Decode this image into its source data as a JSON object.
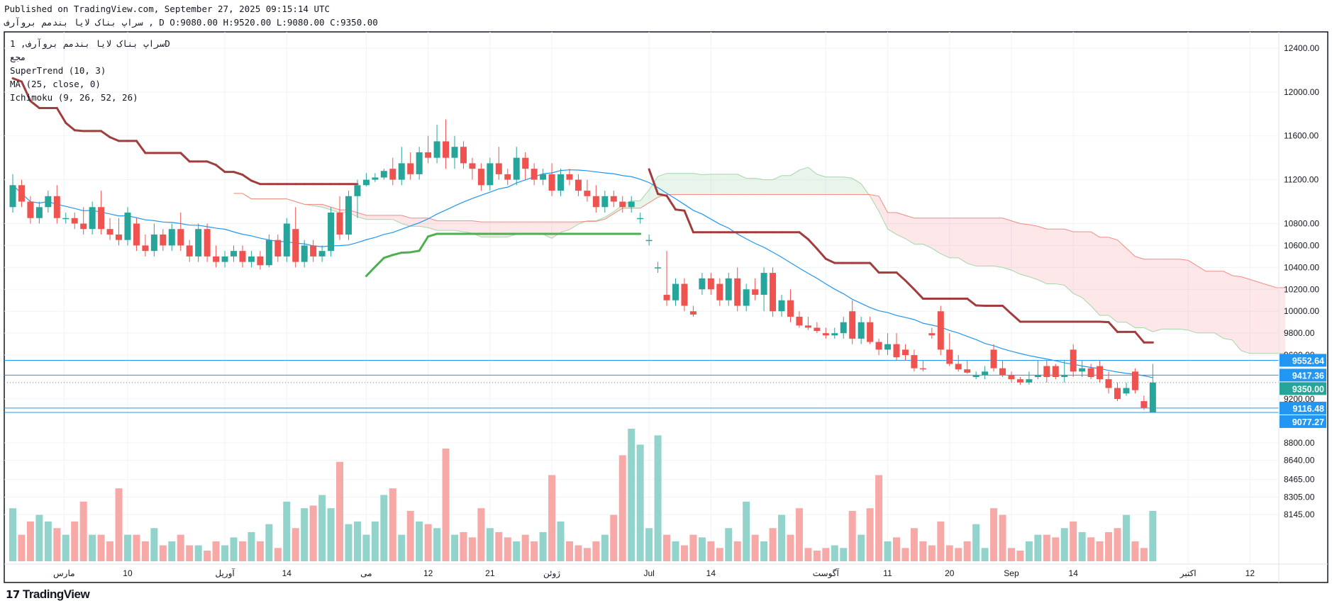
{
  "header": {
    "published": "Published on TradingView.com, September 27, 2025 09:15:14 UTC",
    "ohlc_line": "سراپ بناک لایا بندمم بروآرف , D O:9080.00 H:9520.00 L:9080.00 C:9350.00"
  },
  "legend": {
    "symbol": "سراپ بناک لایا بندمم بروآرف, 1D",
    "exchange": "مجع",
    "supertrend": "SuperTrend (10, 3)",
    "ma": "MA (25, close, 0)",
    "ichimoku": "Ichimoku (9, 26, 52, 26)"
  },
  "branding": {
    "logo_text": "TradingView"
  },
  "colors": {
    "up": "#26a69a",
    "down": "#ef5350",
    "vol_up": "#92d3cc",
    "vol_down": "#f7a9a7",
    "ma": "#2196f3",
    "st_up": "#4caf50",
    "st_down": "#a13d3d",
    "level": "#2196f3",
    "span_a": "#a5d6a7",
    "span_b": "#f28b82"
  },
  "chart_data": {
    "type": "candlestick",
    "title": "سراپ بناک لایا بندمم بروآرف, 1D",
    "timeframe": "1D",
    "ohlc": [
      [
        10950,
        11250,
        10900,
        11150
      ],
      [
        11150,
        11200,
        10950,
        11000
      ],
      [
        11000,
        11050,
        10800,
        10850
      ],
      [
        10850,
        11000,
        10800,
        10950
      ],
      [
        10950,
        11100,
        10900,
        11050
      ],
      [
        11050,
        11150,
        10800,
        10850
      ],
      [
        10850,
        10900,
        10800,
        10850
      ],
      [
        10850,
        10900,
        10750,
        10800
      ],
      [
        10800,
        10950,
        10700,
        10750
      ],
      [
        10750,
        11000,
        10700,
        10950
      ],
      [
        10950,
        11100,
        10700,
        10750
      ],
      [
        10750,
        10850,
        10650,
        10700
      ],
      [
        10700,
        10850,
        10600,
        10650
      ],
      [
        10650,
        10950,
        10600,
        10900
      ],
      [
        10800,
        10850,
        10550,
        10600
      ],
      [
        10600,
        10700,
        10500,
        10550
      ],
      [
        10550,
        10800,
        10500,
        10700
      ],
      [
        10700,
        10750,
        10550,
        10600
      ],
      [
        10600,
        10800,
        10550,
        10750
      ],
      [
        10750,
        10900,
        10550,
        10600
      ],
      [
        10600,
        10650,
        10450,
        10500
      ],
      [
        10500,
        10800,
        10450,
        10750
      ],
      [
        10750,
        10800,
        10450,
        10500
      ],
      [
        10500,
        10600,
        10400,
        10450
      ],
      [
        10450,
        10550,
        10400,
        10500
      ],
      [
        10500,
        10600,
        10450,
        10550
      ],
      [
        10550,
        10600,
        10400,
        10450
      ],
      [
        10450,
        10550,
        10400,
        10500
      ],
      [
        10500,
        10550,
        10380,
        10420
      ],
      [
        10420,
        10700,
        10400,
        10650
      ],
      [
        10650,
        10700,
        10450,
        10500
      ],
      [
        10500,
        10850,
        10450,
        10800
      ],
      [
        10750,
        10950,
        10400,
        10450
      ],
      [
        10450,
        10650,
        10400,
        10600
      ],
      [
        10600,
        10650,
        10450,
        10500
      ],
      [
        10500,
        10600,
        10450,
        10550
      ],
      [
        10550,
        10950,
        10500,
        10900
      ],
      [
        10900,
        11050,
        10650,
        10700
      ],
      [
        10700,
        11100,
        10650,
        11050
      ],
      [
        11050,
        11200,
        10850,
        11150
      ],
      [
        11150,
        11260,
        11140,
        11200
      ],
      [
        11200,
        11260,
        11180,
        11220
      ],
      [
        11220,
        11300,
        11200,
        11280
      ],
      [
        11300,
        11400,
        11150,
        11200
      ],
      [
        11200,
        11500,
        11150,
        11350
      ],
      [
        11350,
        11450,
        11200,
        11250
      ],
      [
        11250,
        11500,
        11200,
        11450
      ],
      [
        11450,
        11600,
        11350,
        11400
      ],
      [
        11400,
        11700,
        11350,
        11550
      ],
      [
        11550,
        11750,
        11300,
        11400
      ],
      [
        11400,
        11600,
        11300,
        11500
      ],
      [
        11500,
        11550,
        11300,
        11350
      ],
      [
        11350,
        11400,
        11200,
        11300
      ],
      [
        11300,
        11350,
        11100,
        11150
      ],
      [
        11150,
        11400,
        11100,
        11350
      ],
      [
        11350,
        11500,
        11200,
        11250
      ],
      [
        11250,
        11300,
        11150,
        11200
      ],
      [
        11200,
        11500,
        11150,
        11400
      ],
      [
        11400,
        11450,
        11200,
        11300
      ],
      [
        11300,
        11350,
        11150,
        11200
      ],
      [
        11200,
        11300,
        11150,
        11250
      ],
      [
        11250,
        11350,
        11050,
        11100
      ],
      [
        11100,
        11300,
        11050,
        11250
      ],
      [
        11250,
        11300,
        11150,
        11200
      ],
      [
        11200,
        11250,
        11050,
        11100
      ],
      [
        11100,
        11200,
        11000,
        11050
      ],
      [
        11050,
        11150,
        10900,
        10950
      ],
      [
        10950,
        11100,
        10900,
        11050
      ],
      [
        11050,
        11100,
        10950,
        11000
      ],
      [
        11000,
        11050,
        10900,
        10950
      ],
      [
        10950,
        11050,
        10900,
        11000
      ],
      [
        10850,
        10900,
        10800,
        10850
      ],
      [
        10650,
        10700,
        10600,
        10650
      ],
      [
        10400,
        10450,
        10350,
        10400
      ],
      [
        10150,
        10550,
        10050,
        10100
      ],
      [
        10100,
        10300,
        10050,
        10250
      ],
      [
        10250,
        10300,
        10000,
        10050
      ],
      [
        10000,
        10050,
        9950,
        9970
      ],
      [
        10200,
        10350,
        10150,
        10300
      ],
      [
        10300,
        10350,
        10150,
        10200
      ],
      [
        10250,
        10300,
        10050,
        10100
      ],
      [
        10100,
        10350,
        10050,
        10300
      ],
      [
        10300,
        10400,
        10000,
        10050
      ],
      [
        10050,
        10250,
        10000,
        10200
      ],
      [
        10200,
        10300,
        10100,
        10150
      ],
      [
        10150,
        10400,
        10000,
        10350
      ],
      [
        10350,
        10400,
        9950,
        10000
      ],
      [
        10000,
        10150,
        9950,
        10100
      ],
      [
        10100,
        10200,
        9900,
        9950
      ],
      [
        9950,
        10000,
        9850,
        9870
      ],
      [
        9870,
        9950,
        9830,
        9850
      ],
      [
        9850,
        9900,
        9800,
        9820
      ],
      [
        9800,
        9850,
        9750,
        9780
      ],
      [
        9780,
        9850,
        9750,
        9800
      ],
      [
        9800,
        9950,
        9750,
        9900
      ],
      [
        10000,
        10100,
        9700,
        9750
      ],
      [
        9750,
        9950,
        9700,
        9900
      ],
      [
        9900,
        9950,
        9700,
        9720
      ],
      [
        9720,
        9750,
        9600,
        9650
      ],
      [
        9650,
        9800,
        9600,
        9700
      ],
      [
        9700,
        9800,
        9550,
        9580
      ],
      [
        9650,
        9700,
        9550,
        9600
      ],
      [
        9600,
        9650,
        9450,
        9480
      ],
      [
        9480,
        9550,
        9450,
        9470
      ],
      [
        9800,
        9850,
        9750,
        9780
      ],
      [
        10000,
        10050,
        9600,
        9650
      ],
      [
        9650,
        9800,
        9500,
        9520
      ],
      [
        9520,
        9600,
        9450,
        9470
      ],
      [
        9470,
        9550,
        9430,
        9440
      ],
      [
        9400,
        9450,
        9380,
        9420
      ],
      [
        9420,
        9500,
        9380,
        9450
      ],
      [
        9650,
        9700,
        9450,
        9480
      ],
      [
        9480,
        9550,
        9400,
        9420
      ],
      [
        9420,
        9450,
        9350,
        9380
      ],
      [
        9380,
        9400,
        9330,
        9350
      ],
      [
        9350,
        9450,
        9330,
        9380
      ],
      [
        9400,
        9550,
        9380,
        9420
      ],
      [
        9500,
        9550,
        9350,
        9400
      ],
      [
        9500,
        9520,
        9380,
        9400
      ],
      [
        9400,
        9550,
        9350,
        9420
      ],
      [
        9650,
        9700,
        9400,
        9450
      ],
      [
        9450,
        9550,
        9400,
        9480
      ],
      [
        9480,
        9520,
        9380,
        9400
      ],
      [
        9500,
        9550,
        9350,
        9380
      ],
      [
        9380,
        9450,
        9250,
        9300
      ],
      [
        9300,
        9350,
        9180,
        9200
      ],
      [
        9250,
        9350,
        9230,
        9300
      ],
      [
        9450,
        9480,
        9250,
        9280
      ],
      [
        9180,
        9230,
        9100,
        9120
      ],
      [
        9080,
        9520,
        9080,
        9350
      ]
    ],
    "volume_relative": [
      40,
      20,
      30,
      35,
      30,
      25,
      20,
      30,
      45,
      20,
      20,
      15,
      55,
      20,
      20,
      15,
      25,
      12,
      15,
      20,
      12,
      12,
      8,
      15,
      12,
      18,
      15,
      22,
      15,
      28,
      10,
      45,
      25,
      40,
      42,
      50,
      40,
      75,
      28,
      30,
      20,
      30,
      50,
      55,
      20,
      38,
      30,
      28,
      25,
      85,
      20,
      22,
      18,
      40,
      25,
      22,
      18,
      15,
      20,
      15,
      22,
      65,
      30,
      15,
      12,
      10,
      15,
      20,
      35,
      80,
      100,
      88,
      25,
      95,
      20,
      15,
      12,
      20,
      18,
      15,
      10,
      25,
      15,
      45,
      20,
      15,
      25,
      35,
      20,
      40,
      10,
      8,
      10,
      12,
      10,
      38,
      20,
      40,
      65,
      15,
      18,
      10,
      25,
      15,
      12,
      30,
      12,
      10,
      15,
      28,
      10,
      40,
      35,
      10,
      8,
      15,
      20,
      20,
      18,
      25,
      30,
      22,
      18,
      15,
      22,
      25,
      35,
      15,
      10,
      38
    ],
    "price_ticks": [
      "12400.00",
      "12000.00",
      "11600.00",
      "11200.00",
      "10800.00",
      "10600.00",
      "10400.00",
      "10200.00",
      "10000.00",
      "9800.00",
      "9600.00",
      "9200.00",
      "8800.00",
      "8640.00",
      "8465.00",
      "8305.00",
      "8145.00"
    ],
    "price_levels": [
      {
        "value": "9552.64",
        "style": "solid"
      },
      {
        "value": "9417.36",
        "style": "solid"
      },
      {
        "value": "9350.00",
        "style": "dotted",
        "last_price": true
      },
      {
        "value": "9116.48",
        "style": "solid"
      },
      {
        "value": "9077.27",
        "style": "solid"
      }
    ],
    "time_labels": [
      {
        "label": "مارس",
        "bar": 5.8
      },
      {
        "label": "10",
        "bar": 13
      },
      {
        "label": "آوریل",
        "bar": 24
      },
      {
        "label": "14",
        "bar": 31
      },
      {
        "label": "می",
        "bar": 40
      },
      {
        "label": "12",
        "bar": 47
      },
      {
        "label": "21",
        "bar": 54
      },
      {
        "label": "ژوئن",
        "bar": 61
      },
      {
        "label": "Jul",
        "bar": 72
      },
      {
        "label": "14",
        "bar": 79
      },
      {
        "label": "آگوست",
        "bar": 92
      },
      {
        "label": "11",
        "bar": 99
      },
      {
        "label": "20",
        "bar": 106
      },
      {
        "label": "Sep",
        "bar": 113
      },
      {
        "label": "14",
        "bar": 120
      },
      {
        "label": "اکتبر",
        "bar": 133
      },
      {
        "label": "12",
        "bar": 140
      }
    ],
    "indicators": {
      "supertrend": {
        "atr_period": 10,
        "multiplier": 3
      },
      "ma": {
        "length": 25
      },
      "ichimoku": {
        "conversion": 9,
        "base": 26,
        "lagging": 52,
        "displacement": 26
      }
    },
    "ylim": [
      8100,
      12550
    ]
  }
}
